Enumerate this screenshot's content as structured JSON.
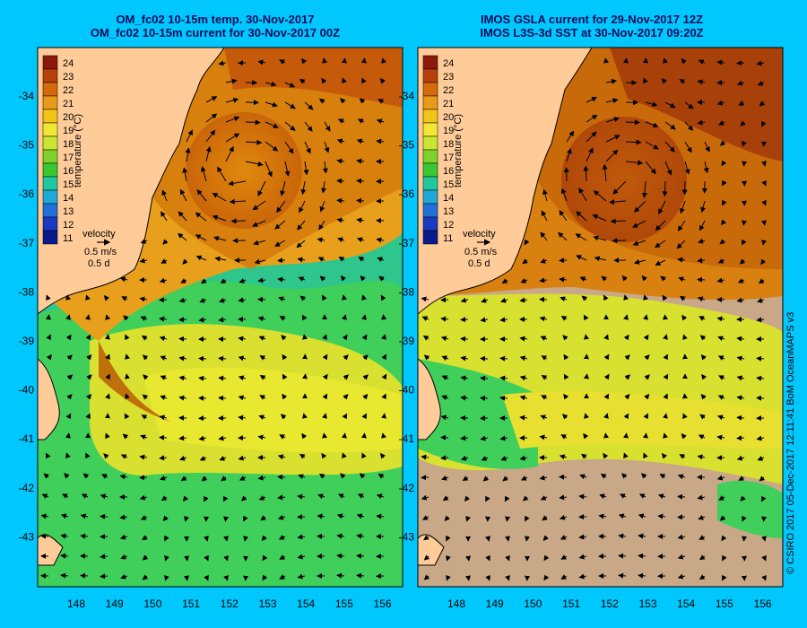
{
  "left_panel": {
    "title_line1": "OM_fc02 10-15m temp. 30-Nov-2017",
    "title_line2": "OM_fc02 10-15m current for 30-Nov-2017 00Z",
    "colorbar_label": "temperature (°C)",
    "velocity_label": "velocity",
    "velocity_scale": "0.5 m/s",
    "velocity_time": "0.5 d"
  },
  "right_panel": {
    "title_line1": "IMOS GSLA current for 29-Nov-2017 12Z",
    "title_line2": "IMOS L3S-3d SST at 30-Nov-2017 09:20Z",
    "colorbar_label": "temperature (°C)",
    "velocity_label": "velocity",
    "velocity_scale": "0.5 m/s",
    "velocity_time": "0.5 d"
  },
  "y_ticks": [
    "-34",
    "-35",
    "-36",
    "-37",
    "-38",
    "-39",
    "-40",
    "-41",
    "-42",
    "-43"
  ],
  "x_ticks": [
    "148",
    "149",
    "150",
    "151",
    "152",
    "153",
    "154",
    "155",
    "156"
  ],
  "colorbar_ticks": [
    "24",
    "23",
    "22",
    "21",
    "20",
    "19",
    "18",
    "17",
    "16",
    "15",
    "14",
    "13",
    "12",
    "11"
  ],
  "colorbar_colors": [
    "#8b1a0a",
    "#b8400a",
    "#d46a08",
    "#e89a1a",
    "#f2c418",
    "#f2e832",
    "#c8e632",
    "#7ed22a",
    "#38c832",
    "#20c8a0",
    "#20a8d8",
    "#2070d8",
    "#1a38c0",
    "#0a1a8a"
  ],
  "credit": "© CSIRO 2017   05-Dec-2017 12:11:41 BoM OceanMAPS v3",
  "colors": {
    "background": "#00c8ff",
    "land": "#ffcc99",
    "cloud": "#c8a886"
  }
}
